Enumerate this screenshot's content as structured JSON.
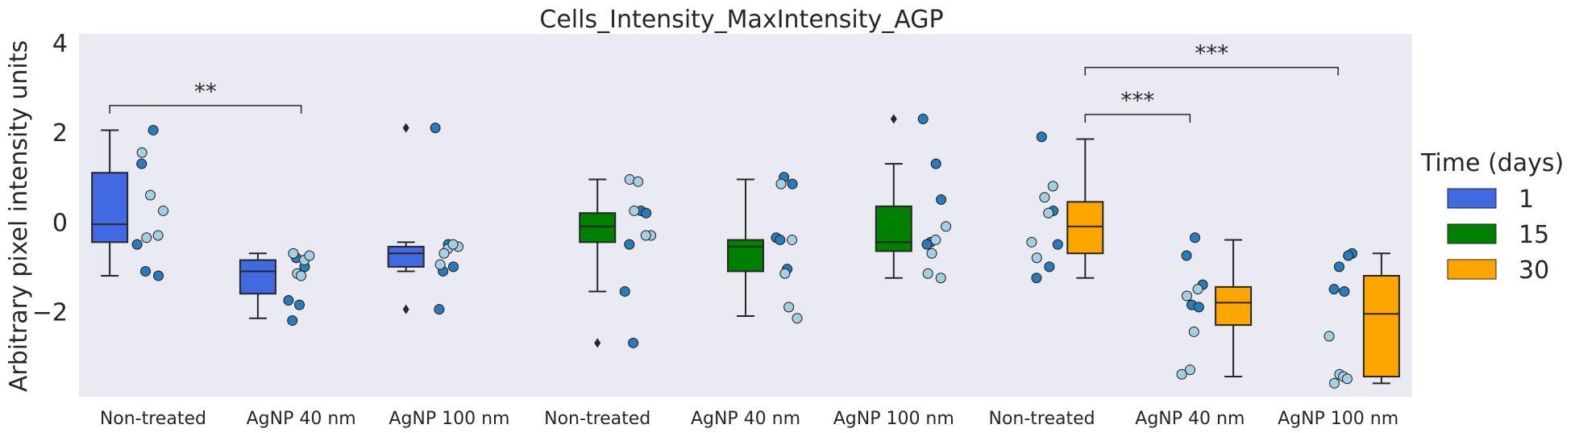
{
  "chart_data": {
    "type": "box",
    "title": "Cells_Intensity_MaxIntensity_AGP",
    "xlabel": "",
    "ylabel": "Arbitrary pixel intensity units",
    "ylim": [
      -3.9,
      4.2
    ],
    "yticks": [
      -2,
      0,
      2,
      4
    ],
    "ytick_labels": [
      "−2",
      "0",
      "2",
      "4"
    ],
    "categories": [
      "Non-treated",
      "AgNP 40 nm",
      "AgNP 100 nm",
      "Non-treated",
      "AgNP 40 nm",
      "AgNP 100 nm",
      "Non-treated",
      "AgNP 40 nm",
      "AgNP 100 nm"
    ],
    "legend": {
      "title": "Time (days)",
      "entries": [
        {
          "label": "1",
          "color": "#4169e1"
        },
        {
          "label": "15",
          "color": "#008000"
        },
        {
          "label": "30",
          "color": "#ffa500"
        }
      ]
    },
    "point_colors": {
      "dark": "#2b7bb9",
      "light": "#a6cee3"
    },
    "boxes": [
      {
        "category": "Non-treated",
        "time": "1",
        "color": "#4169e1",
        "q1": -0.45,
        "median": -0.05,
        "q3": 1.1,
        "whisker_low": -1.2,
        "whisker_high": 2.05,
        "outliers": []
      },
      {
        "category": "AgNP 40 nm",
        "time": "1",
        "color": "#4169e1",
        "q1": -1.6,
        "median": -1.1,
        "q3": -0.85,
        "whisker_low": -2.15,
        "whisker_high": -0.7,
        "outliers": []
      },
      {
        "category": "AgNP 100 nm",
        "time": "1",
        "color": "#4169e1",
        "q1": -1.0,
        "median": -0.7,
        "q3": -0.55,
        "whisker_low": -1.1,
        "whisker_high": -0.45,
        "outliers": [
          2.1,
          -1.95
        ]
      },
      {
        "category": "Non-treated",
        "time": "15",
        "color": "#008000",
        "q1": -0.45,
        "median": -0.1,
        "q3": 0.2,
        "whisker_low": -1.55,
        "whisker_high": 0.95,
        "outliers": [
          -2.7
        ]
      },
      {
        "category": "AgNP 40 nm",
        "time": "15",
        "color": "#008000",
        "q1": -1.1,
        "median": -0.55,
        "q3": -0.4,
        "whisker_low": -2.1,
        "whisker_high": 0.95,
        "outliers": []
      },
      {
        "category": "AgNP 100 nm",
        "time": "15",
        "color": "#008000",
        "q1": -0.65,
        "median": -0.45,
        "q3": 0.35,
        "whisker_low": -1.25,
        "whisker_high": 1.3,
        "outliers": [
          2.3
        ]
      },
      {
        "category": "Non-treated",
        "time": "30",
        "color": "#ffa500",
        "q1": -0.7,
        "median": -0.1,
        "q3": 0.45,
        "whisker_low": -1.25,
        "whisker_high": 1.85,
        "outliers": []
      },
      {
        "category": "AgNP 40 nm",
        "time": "30",
        "color": "#ffa500",
        "q1": -2.3,
        "median": -1.8,
        "q3": -1.45,
        "whisker_low": -3.45,
        "whisker_high": -0.4,
        "outliers": []
      },
      {
        "category": "AgNP 100 nm",
        "time": "30",
        "color": "#ffa500",
        "q1": -3.45,
        "median": -2.05,
        "q3": -1.2,
        "whisker_low": -3.6,
        "whisker_high": -0.7,
        "outliers": []
      }
    ],
    "points": [
      {
        "group": 0,
        "values_dark": [
          2.05,
          1.3,
          -0.5,
          -1.1,
          -1.2
        ],
        "values_light": [
          1.55,
          0.6,
          0.25,
          -0.3,
          -0.35
        ]
      },
      {
        "group": 1,
        "values_dark": [
          -0.8,
          -1.0,
          -1.75,
          -1.85,
          -2.2
        ],
        "values_light": [
          -0.7,
          -0.85,
          -1.15,
          -1.2,
          -0.75
        ]
      },
      {
        "group": 2,
        "values_dark": [
          2.1,
          -0.5,
          -1.0,
          -1.1,
          -1.95
        ],
        "values_light": [
          -0.55,
          -0.6,
          -0.7,
          -0.95,
          -0.5
        ]
      },
      {
        "group": 3,
        "values_dark": [
          0.25,
          -0.5,
          -1.55,
          -2.7,
          0.2
        ],
        "values_light": [
          0.95,
          0.9,
          -0.3,
          -0.3,
          0.25
        ]
      },
      {
        "group": 4,
        "values_dark": [
          1.0,
          0.85,
          -0.35,
          -1.05,
          -0.4
        ],
        "values_light": [
          0.85,
          -0.4,
          -1.15,
          -1.9,
          -2.15
        ]
      },
      {
        "group": 5,
        "values_dark": [
          2.3,
          1.3,
          0.5,
          -0.45,
          -0.5
        ],
        "values_light": [
          -0.1,
          -0.4,
          -0.7,
          -1.15,
          -1.25
        ]
      },
      {
        "group": 6,
        "values_dark": [
          1.9,
          0.25,
          -0.5,
          -1.0,
          -1.25
        ],
        "values_light": [
          0.8,
          0.55,
          -0.45,
          -0.8,
          0.2
        ]
      },
      {
        "group": 7,
        "values_dark": [
          -0.35,
          -0.75,
          -1.4,
          -1.85,
          -1.9
        ],
        "values_light": [
          -1.5,
          -1.65,
          -2.45,
          -3.3,
          -3.4
        ]
      },
      {
        "group": 8,
        "values_dark": [
          -0.7,
          -1.0,
          -1.5,
          -1.55,
          -0.75
        ],
        "values_light": [
          -2.55,
          -3.4,
          -3.45,
          -3.5,
          -3.6
        ]
      }
    ],
    "significance": [
      {
        "from": 0,
        "to": 1,
        "y": 2.6,
        "label": "**"
      },
      {
        "from": 6,
        "to": 7,
        "y": 2.4,
        "label": "***"
      },
      {
        "from": 6,
        "to": 8,
        "y": 3.45,
        "label": "***"
      }
    ]
  }
}
